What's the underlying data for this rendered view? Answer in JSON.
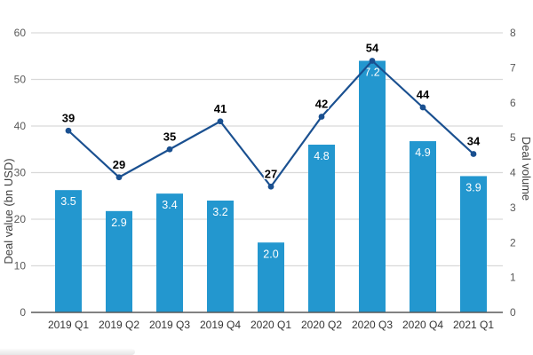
{
  "chart_data": {
    "type": "combo",
    "title": "",
    "categories": [
      "2019 Q1",
      "2019 Q2",
      "2019 Q3",
      "2019 Q4",
      "2020 Q1",
      "2020 Q2",
      "2020 Q3",
      "2020 Q4",
      "2021 Q1"
    ],
    "series": [
      {
        "name": "bars",
        "type": "bar",
        "axis": "right",
        "values": [
          3.5,
          2.9,
          3.4,
          3.2,
          2.0,
          4.8,
          7.2,
          4.9,
          3.9
        ],
        "data_labels": [
          "3.5",
          "2.9",
          "3.4",
          "3.2",
          "2.0",
          "4.8",
          "7.2",
          "4.9",
          "3.9"
        ],
        "color": "#2397CF",
        "label_color": "#ffffff"
      },
      {
        "name": "line",
        "type": "line",
        "axis": "left",
        "values": [
          39,
          29,
          35,
          41,
          27,
          42,
          54,
          44,
          34
        ],
        "data_labels": [
          "39",
          "29",
          "35",
          "41",
          "27",
          "42",
          "54",
          "44",
          "34"
        ],
        "color": "#1A5090",
        "marker": "circle",
        "label_color": "#000000"
      }
    ],
    "left_axis": {
      "label": "Deal value (bn USD)",
      "min": 0,
      "max": 60,
      "ticks": [
        0,
        10,
        20,
        30,
        40,
        50,
        60
      ]
    },
    "right_axis": {
      "label": "Deal volume",
      "min": 0,
      "max": 8,
      "ticks": [
        0,
        1,
        2,
        3,
        4,
        5,
        6,
        7,
        8
      ]
    },
    "grid": {
      "horizontal": true,
      "color": "#D9D9D9"
    },
    "axis_line_color": "#595959",
    "tick_label_color": "#595959",
    "category_label_color": "#333333",
    "legend": "none"
  }
}
